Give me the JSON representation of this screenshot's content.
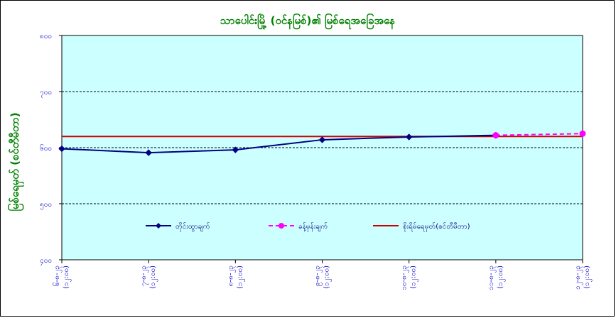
{
  "chart_data": {
    "type": "line",
    "title": "သာပေါင်းမြို့ (ဝင်နမြစ်)၏ မြစ်ရေအခြေအနေ",
    "ylabel": "မြစ်ရေမှတ် (စင်တီမီတာ)",
    "xlabel": "",
    "ylim": [
      400,
      800
    ],
    "y_ticks": [
      "၄၀၀",
      "၅၀၀",
      "၆၀၀",
      "၇၀၀",
      "၈၀၀"
    ],
    "y_tick_values": [
      400,
      500,
      600,
      700,
      800
    ],
    "grid": true,
    "categories": [
      [
        "၆-၈-၂၃",
        "(၁၂:၀၀)"
      ],
      [
        "၇-၈-၂၃",
        "(၁၂:၀၀)"
      ],
      [
        "၈-၈-၂၃",
        "(၁၂:၀၀)"
      ],
      [
        "၉-၈-၂၃",
        "(၁၂:၀၀)"
      ],
      [
        "၁၀-၈-၂၃",
        "(၁၂:၀၀)"
      ],
      [
        "၁၁-၈-၂၃",
        "(၁၂:၀၀)"
      ],
      [
        "၁၂-၈-၂၃",
        "(၁၂:၀၀)"
      ]
    ],
    "series": [
      {
        "name": "တိုင်းထွာချက်",
        "color": "#000080",
        "marker": "diamond",
        "dash": "solid",
        "values": [
          598,
          591,
          596,
          614,
          619,
          622,
          null
        ]
      },
      {
        "name": "ခန့်မှန်းချက်",
        "color": "#ff00ff",
        "marker": "circle",
        "dash": "dashed",
        "values": [
          null,
          null,
          null,
          null,
          null,
          622,
          625
        ]
      },
      {
        "name": "စိုးရိမ်ရေမှတ်(စင်တီမီတာ)",
        "color": "#cc0000",
        "marker": "none",
        "dash": "solid",
        "values": [
          620,
          620,
          620,
          620,
          620,
          620,
          620
        ]
      }
    ],
    "legend_position": "center",
    "colors": {
      "plot_background": "#ccffff",
      "title": "#008000",
      "ylabel": "#008000",
      "tick_labels": "#0000cc",
      "frame": "#000000"
    }
  }
}
